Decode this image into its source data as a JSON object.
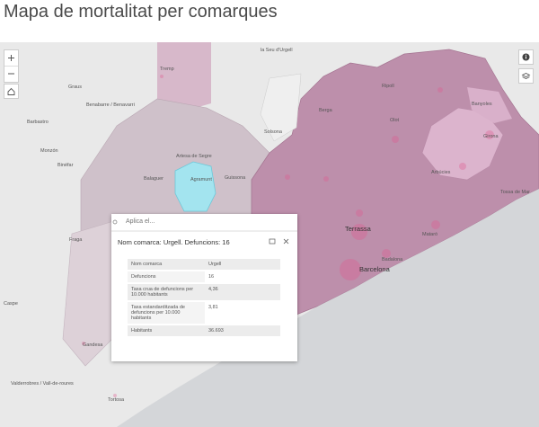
{
  "header": {
    "title": "Mapa de mortalitat per comarques"
  },
  "map": {
    "labels": [
      "la Seu d'Urgell",
      "Tremp",
      "Graus",
      "Benabarre / Benavarri",
      "Barbastro",
      "Solsona",
      "Berga",
      "Ripoll",
      "Olot",
      "Banyoles",
      "Girona",
      "Monzón",
      "Binéfar",
      "Artesa de Segre",
      "Balaguer",
      "Agramunt",
      "Guissona",
      "Arbúcies",
      "Tossa de Mar",
      "Terrassa",
      "Mataró",
      "Barcelona",
      "Badalona",
      "Fraga",
      "Caspe",
      "Gandesa",
      "Tortosa",
      "Valderrobres / Vall-de-roures"
    ]
  },
  "popup": {
    "search_placeholder": "Aplica el...",
    "title": "Nom comarca: Urgell. Defuncions: 16",
    "table": {
      "rows": [
        [
          "Nom comarca",
          "Urgell"
        ],
        [
          "Defuncions",
          "16"
        ],
        [
          "Taxa crua de defuncions per 10.000 habitants",
          "4,36"
        ],
        [
          "Taxa estandarditzada de defuncions per 10.000 habitants",
          "3,81"
        ],
        [
          "Habitants",
          "36.693"
        ]
      ]
    }
  }
}
